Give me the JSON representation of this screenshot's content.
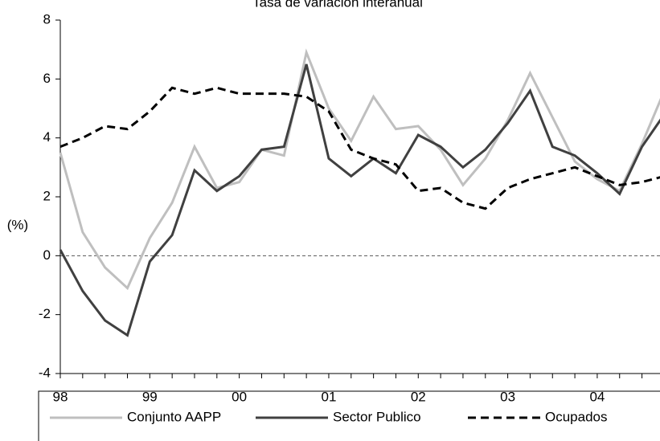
{
  "chart_data": {
    "type": "line",
    "title": "Tasa de variación interanual",
    "y_label": "(%)",
    "categories": [
      "98",
      null,
      null,
      null,
      "99",
      null,
      null,
      null,
      "00",
      null,
      null,
      null,
      "01",
      null,
      null,
      null,
      "02",
      null,
      null,
      null,
      "03",
      null,
      null,
      null,
      "04",
      null,
      null,
      null
    ],
    "series": [
      {
        "name": "Conjunto AAPP",
        "color": "#bfbfbf",
        "dash": false,
        "values": [
          3.5,
          0.8,
          -0.4,
          -1.1,
          0.6,
          1.8,
          3.7,
          2.3,
          2.5,
          3.6,
          3.4,
          6.9,
          5.0,
          3.9,
          5.4,
          4.3,
          4.4,
          3.6,
          2.4,
          3.3,
          4.6,
          6.2,
          4.7,
          3.2,
          2.6,
          2.2,
          3.8,
          5.6
        ]
      },
      {
        "name": "Sector Publico",
        "color": "#404040",
        "dash": false,
        "values": [
          0.2,
          -1.2,
          -2.2,
          -2.7,
          -0.2,
          0.7,
          2.9,
          2.2,
          2.7,
          3.6,
          3.7,
          6.5,
          3.3,
          2.7,
          3.3,
          2.8,
          4.1,
          3.7,
          3.0,
          3.6,
          4.5,
          5.6,
          3.7,
          3.4,
          2.8,
          2.1,
          3.7,
          4.8
        ]
      },
      {
        "name": "Ocupados",
        "color": "#000000",
        "dash": true,
        "values": [
          3.7,
          4.0,
          4.4,
          4.3,
          4.9,
          5.7,
          5.5,
          5.7,
          5.5,
          5.5,
          5.5,
          5.4,
          4.9,
          3.6,
          3.3,
          3.1,
          2.2,
          2.3,
          1.8,
          1.6,
          2.3,
          2.6,
          2.8,
          3.0,
          2.7,
          2.4,
          2.5,
          2.7
        ]
      }
    ],
    "ylim": [
      -4,
      8
    ],
    "yticks": [
      -4,
      -2,
      0,
      2,
      4,
      6,
      8
    ],
    "zero_line": true,
    "grid": false,
    "legend": "bottom"
  }
}
